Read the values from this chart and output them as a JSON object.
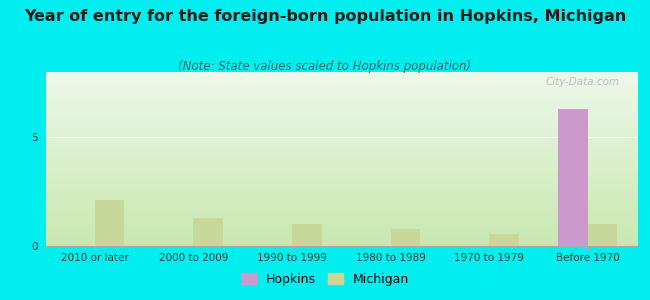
{
  "title": "Year of entry for the foreign-born population in Hopkins, Michigan",
  "subtitle": "(Note: State values scaled to Hopkins population)",
  "categories": [
    "2010 or later",
    "2000 to 2009",
    "1990 to 1999",
    "1980 to 1989",
    "1970 to 1979",
    "Before 1970"
  ],
  "hopkins_values": [
    0,
    0,
    0,
    0,
    0,
    6.3
  ],
  "michigan_values": [
    2.1,
    1.3,
    1.0,
    0.8,
    0.55,
    1.0
  ],
  "hopkins_color": "#cc99cc",
  "michigan_color": "#c8d89a",
  "background_color": "#00eeee",
  "grad_top": "#edf8ea",
  "grad_bottom": "#c8e8b0",
  "ylim": [
    0,
    8
  ],
  "yticks": [
    0,
    5
  ],
  "bar_width": 0.3,
  "title_fontsize": 11.5,
  "subtitle_fontsize": 8.5,
  "tick_fontsize": 7.5,
  "legend_fontsize": 9,
  "watermark": "City-Data.com"
}
